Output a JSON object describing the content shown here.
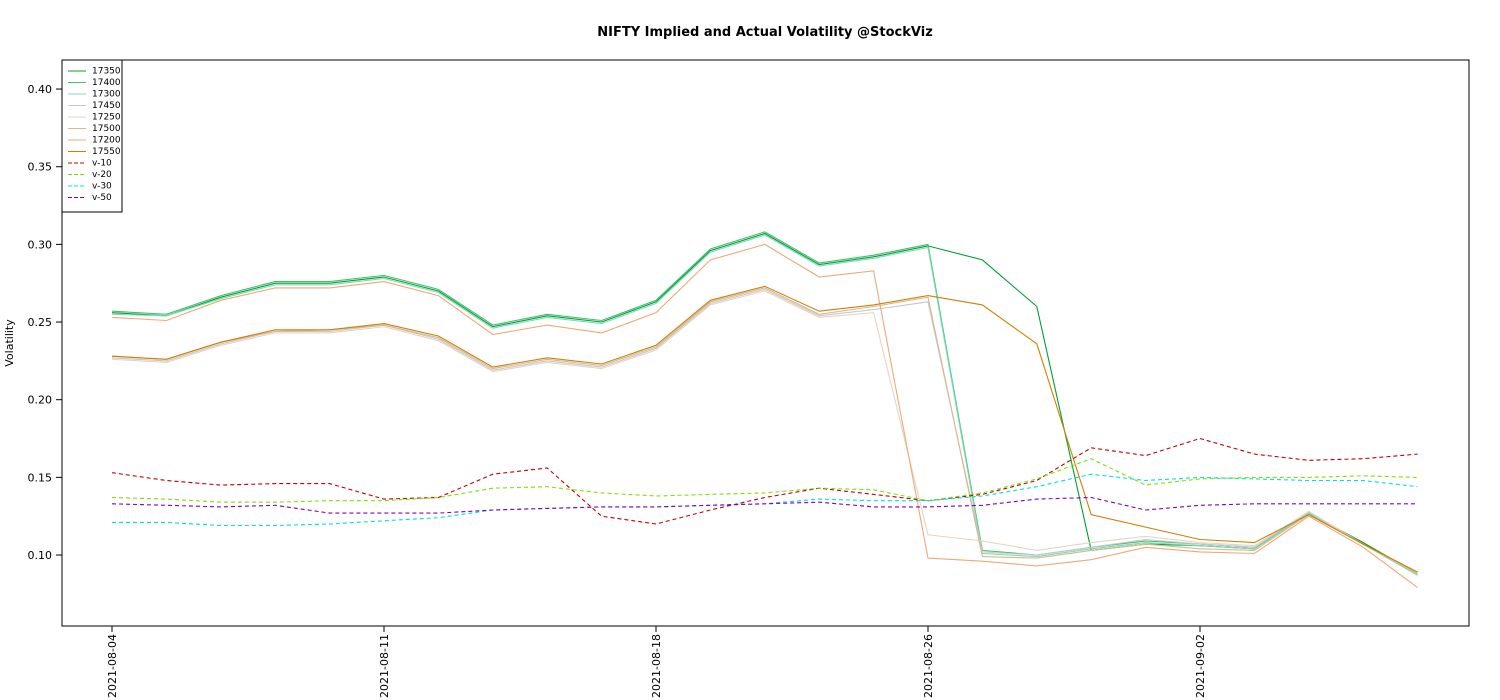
{
  "chart_data": {
    "type": "line",
    "title": "NIFTY Implied and Actual Volatility @StockViz",
    "y_label": "Volatility",
    "categories": [
      "2021-08-04",
      null,
      null,
      null,
      null,
      "2021-08-11",
      null,
      null,
      null,
      null,
      "2021-08-18",
      null,
      null,
      null,
      null,
      "2021-08-26",
      null,
      null,
      null,
      null,
      "2021-09-02",
      null,
      null,
      null,
      null
    ],
    "ylim": [
      0.0543,
      0.4187
    ],
    "yticks": [
      {
        "value": 0.1,
        "label": "0.10"
      },
      0.15,
      {
        "value": 0.2,
        "label": "0.20"
      },
      0.25,
      {
        "value": 0.3,
        "label": "0.30"
      },
      0.35,
      {
        "value": 0.4,
        "label": "0.40"
      }
    ],
    "legend": "top-left",
    "series": [
      {
        "name": "17350",
        "color": "#00a030",
        "style": "solid",
        "values": [
          0.256,
          0.254,
          0.266,
          0.275,
          0.275,
          0.279,
          0.27,
          0.247,
          0.254,
          0.25,
          0.263,
          0.296,
          0.307,
          0.287,
          0.292,
          0.299,
          0.29,
          0.26,
          0.103,
          0.107,
          0.106,
          0.104,
          0.127,
          0.108,
          0.088
        ]
      },
      {
        "name": "17400",
        "color": "#40c070",
        "style": "solid",
        "values": [
          0.257,
          0.255,
          0.267,
          0.276,
          0.276,
          0.28,
          0.271,
          0.248,
          0.255,
          0.251,
          0.264,
          0.297,
          0.308,
          0.288,
          0.293,
          0.3,
          0.103,
          0.1,
          0.105,
          0.109,
          0.107,
          0.105,
          0.127,
          0.107,
          0.087
        ]
      },
      {
        "name": "17300",
        "color": "#80d8b8",
        "style": "solid",
        "values": [
          0.255,
          0.254,
          0.265,
          0.274,
          0.274,
          0.278,
          0.269,
          0.246,
          0.253,
          0.249,
          0.262,
          0.295,
          0.306,
          0.286,
          0.291,
          0.298,
          0.101,
          0.099,
          0.104,
          0.108,
          0.106,
          0.104,
          0.127,
          0.107,
          0.087
        ]
      },
      {
        "name": "17450",
        "color": "#c8c8c8",
        "style": "solid",
        "values": [
          0.227,
          0.225,
          0.236,
          0.244,
          0.244,
          0.248,
          0.239,
          0.219,
          0.225,
          0.221,
          0.233,
          0.262,
          0.271,
          0.254,
          0.258,
          0.263,
          0.102,
          0.1,
          0.105,
          0.11,
          0.107,
          0.105,
          0.128,
          0.107,
          0.088
        ]
      },
      {
        "name": "17250",
        "color": "#e6d4c4",
        "style": "solid",
        "values": [
          0.226,
          0.224,
          0.235,
          0.243,
          0.243,
          0.247,
          0.238,
          0.218,
          0.224,
          0.22,
          0.232,
          0.261,
          0.27,
          0.253,
          0.256,
          0.113,
          0.109,
          0.103,
          0.108,
          0.112,
          0.108,
          0.106,
          0.128,
          0.107,
          0.088
        ]
      },
      {
        "name": "17500",
        "color": "#d8b890",
        "style": "solid",
        "values": [
          0.228,
          0.226,
          0.237,
          0.244,
          0.245,
          0.248,
          0.24,
          0.22,
          0.226,
          0.222,
          0.234,
          0.263,
          0.272,
          0.255,
          0.26,
          0.266,
          0.099,
          0.098,
          0.103,
          0.107,
          0.104,
          0.103,
          0.126,
          0.107,
          0.088
        ]
      },
      {
        "name": "17200",
        "color": "#f0a878",
        "style": "solid",
        "values": [
          0.253,
          0.251,
          0.264,
          0.272,
          0.272,
          0.276,
          0.267,
          0.242,
          0.248,
          0.243,
          0.256,
          0.29,
          0.3,
          0.279,
          0.283,
          0.098,
          0.096,
          0.093,
          0.097,
          0.105,
          0.102,
          0.101,
          0.125,
          0.105,
          0.079
        ]
      },
      {
        "name": "17550",
        "color": "#d08000",
        "style": "solid",
        "values": [
          0.228,
          0.226,
          0.237,
          0.245,
          0.245,
          0.249,
          0.241,
          0.221,
          0.227,
          0.223,
          0.235,
          0.264,
          0.273,
          0.257,
          0.261,
          0.267,
          0.261,
          0.236,
          0.126,
          0.118,
          0.11,
          0.108,
          0.126,
          0.107,
          0.089
        ]
      },
      {
        "name": "v-10",
        "color": "#c00000",
        "style": "dashed",
        "values": [
          0.153,
          0.148,
          0.145,
          0.146,
          0.146,
          0.136,
          0.137,
          0.152,
          0.156,
          0.125,
          0.12,
          0.129,
          0.137,
          0.143,
          0.139,
          0.135,
          0.139,
          0.148,
          0.169,
          0.164,
          0.175,
          0.165,
          0.161,
          0.162,
          0.165
        ]
      },
      {
        "name": "v-20",
        "color": "#80e000",
        "style": "dashed",
        "values": [
          0.137,
          0.136,
          0.134,
          0.134,
          0.135,
          0.135,
          0.137,
          0.143,
          0.144,
          0.14,
          0.138,
          0.139,
          0.14,
          0.143,
          0.142,
          0.135,
          0.14,
          0.149,
          0.162,
          0.145,
          0.149,
          0.15,
          0.15,
          0.151,
          0.15
        ]
      },
      {
        "name": "v-30",
        "color": "#00e0e0",
        "style": "dashed",
        "values": [
          0.121,
          0.121,
          0.119,
          0.119,
          0.12,
          0.122,
          0.124,
          0.129,
          0.13,
          0.131,
          0.131,
          0.132,
          0.133,
          0.136,
          0.135,
          0.135,
          0.138,
          0.144,
          0.152,
          0.148,
          0.15,
          0.149,
          0.148,
          0.148,
          0.144
        ]
      },
      {
        "name": "v-50",
        "color": "#8000c0",
        "style": "dashed",
        "values": [
          0.133,
          0.132,
          0.131,
          0.132,
          0.127,
          0.127,
          0.127,
          0.129,
          0.13,
          0.131,
          0.131,
          0.132,
          0.133,
          0.134,
          0.131,
          0.131,
          0.132,
          0.136,
          0.137,
          0.129,
          0.132,
          0.133,
          0.133,
          0.133,
          0.133
        ]
      }
    ]
  }
}
